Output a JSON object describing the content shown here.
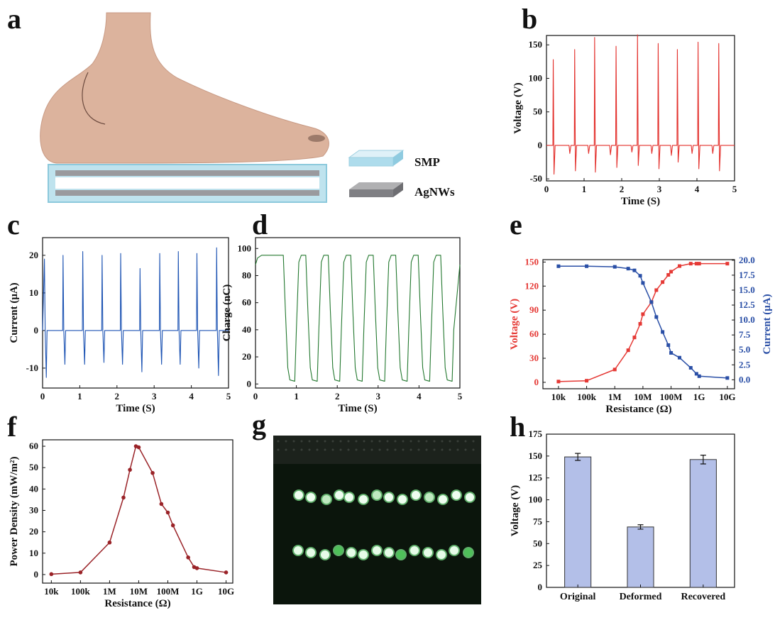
{
  "panel_a": {
    "label": "a",
    "legend": [
      "SMP",
      "AgNWs"
    ]
  },
  "panel_g": {
    "label": "g"
  },
  "chart_data": [
    {
      "type": "line",
      "label": "b",
      "x_label": "Time (S)",
      "y_label": "Voltage (V)",
      "color": "#e3302c",
      "xlim": [
        0,
        5
      ],
      "xticks": [
        0,
        1,
        2,
        3,
        4,
        5
      ],
      "ylim": [
        -53,
        164
      ],
      "yticks": [
        -50,
        0,
        50,
        100,
        150
      ],
      "x": [
        0,
        0.17,
        0.18,
        0.2,
        0.23,
        0.6,
        0.62,
        0.65,
        0.74,
        0.75,
        0.77,
        0.8,
        1.1,
        1.12,
        1.15,
        1.27,
        1.28,
        1.3,
        1.33,
        1.68,
        1.7,
        1.73,
        1.84,
        1.85,
        1.87,
        1.9,
        2.25,
        2.27,
        2.3,
        2.41,
        2.42,
        2.44,
        2.47,
        2.78,
        2.8,
        2.83,
        2.96,
        2.97,
        2.99,
        3.02,
        3.3,
        3.32,
        3.35,
        3.47,
        3.48,
        3.5,
        3.53,
        3.85,
        3.87,
        3.9,
        4.02,
        4.03,
        4.05,
        4.08,
        4.4,
        4.42,
        4.45,
        4.57,
        4.58,
        4.6,
        4.63,
        5
      ],
      "values": [
        0,
        0,
        128,
        -43,
        0,
        0,
        -12,
        0,
        0,
        143,
        -38,
        0,
        0,
        -12,
        0,
        0,
        161,
        -40,
        0,
        0,
        -14,
        0,
        0,
        148,
        -33,
        0,
        0,
        -10,
        0,
        0,
        165,
        -30,
        0,
        0,
        -12,
        0,
        0,
        152,
        -35,
        0,
        0,
        -15,
        0,
        0,
        143,
        -25,
        0,
        0,
        -12,
        0,
        0,
        154,
        -35,
        0,
        0,
        -12,
        0,
        0,
        152,
        -38,
        0,
        0
      ]
    },
    {
      "type": "line",
      "label": "c",
      "x_label": "Time (S)",
      "y_label": "Current (μA)",
      "color": "#1f55b4",
      "xlim": [
        0,
        5
      ],
      "xticks": [
        0,
        1,
        2,
        3,
        4,
        5
      ],
      "ylim": [
        -15.3,
        24.7
      ],
      "yticks": [
        -10,
        0,
        10,
        20
      ],
      "x": [
        0,
        0.05,
        0.07,
        0.1,
        0.12,
        0.54,
        0.55,
        0.57,
        0.6,
        0.62,
        1.07,
        1.08,
        1.1,
        1.13,
        1.15,
        1.59,
        1.6,
        1.62,
        1.65,
        1.67,
        2.09,
        2.1,
        2.12,
        2.15,
        2.17,
        2.61,
        2.62,
        2.64,
        2.67,
        2.69,
        3.14,
        3.15,
        3.17,
        3.2,
        3.22,
        3.64,
        3.65,
        3.67,
        3.7,
        3.72,
        4.14,
        4.15,
        4.17,
        4.2,
        4.22,
        4.67,
        4.68,
        4.7,
        4.73,
        4.75,
        5
      ],
      "values": [
        0,
        19,
        0,
        -12.5,
        0,
        0,
        20,
        0,
        -9,
        0,
        0,
        21,
        0,
        -9,
        0,
        0,
        20,
        0,
        -8.5,
        0,
        0,
        20.5,
        0,
        -9,
        0,
        0,
        16.5,
        0,
        -11,
        0,
        0,
        20.5,
        0,
        -9,
        0,
        0,
        21,
        0,
        -9,
        0,
        0,
        20.5,
        0,
        -10,
        0,
        0,
        22,
        0,
        -12,
        0,
        0
      ]
    },
    {
      "type": "line",
      "label": "d",
      "x_label": "Time (S)",
      "y_label": "Charge (nC)",
      "color": "#23782f",
      "xlim": [
        0,
        5
      ],
      "xticks": [
        0,
        1,
        2,
        3,
        4,
        5
      ],
      "ylim": [
        -3,
        108
      ],
      "yticks": [
        0,
        20,
        40,
        60,
        80,
        100
      ],
      "x": [
        0,
        0.05,
        0.15,
        0.68,
        0.73,
        0.79,
        0.84,
        0.96,
        1.0,
        1.06,
        1.12,
        1.23,
        1.28,
        1.34,
        1.39,
        1.51,
        1.55,
        1.61,
        1.67,
        1.78,
        1.83,
        1.89,
        1.94,
        2.06,
        2.1,
        2.16,
        2.22,
        2.33,
        2.38,
        2.44,
        2.49,
        2.61,
        2.65,
        2.71,
        2.77,
        2.88,
        2.93,
        2.99,
        3.04,
        3.16,
        3.2,
        3.26,
        3.32,
        3.43,
        3.48,
        3.54,
        3.59,
        3.71,
        3.75,
        3.81,
        3.87,
        3.98,
        4.03,
        4.09,
        4.14,
        4.26,
        4.3,
        4.36,
        4.42,
        4.53,
        4.58,
        4.64,
        4.69,
        4.81,
        4.85,
        5
      ],
      "values": [
        88,
        93,
        95,
        95,
        55,
        12,
        3,
        2,
        40,
        90,
        95,
        95,
        55,
        12,
        3,
        2,
        40,
        90,
        95,
        95,
        55,
        12,
        3,
        2,
        40,
        90,
        95,
        95,
        55,
        12,
        3,
        2,
        40,
        90,
        95,
        95,
        55,
        12,
        3,
        2,
        40,
        90,
        95,
        95,
        55,
        12,
        3,
        2,
        40,
        90,
        95,
        95,
        55,
        12,
        3,
        2,
        40,
        90,
        95,
        95,
        55,
        12,
        3,
        2,
        40,
        88
      ]
    },
    {
      "type": "line",
      "label": "e",
      "x_label": "Resistance (Ω)",
      "y_label": "Voltage (V)",
      "y2_label": "Current (μA)",
      "xscale": "log",
      "xlim": [
        2800,
        18000000000
      ],
      "xticks": [
        {
          "value": 10000,
          "label": "10k"
        },
        {
          "value": 100000,
          "label": "100k"
        },
        {
          "value": 1000000,
          "label": "1M"
        },
        {
          "value": 10000000,
          "label": "10M"
        },
        {
          "value": 100000000,
          "label": "100M"
        },
        {
          "value": 1000000000,
          "label": "1G"
        },
        {
          "value": 10000000000,
          "label": "10G"
        }
      ],
      "ylim": [
        -8,
        153
      ],
      "yticks": [
        0,
        30,
        60,
        90,
        120,
        150
      ],
      "y2lim": [
        -1.5,
        20.1
      ],
      "y2ticks": [
        {
          "value": 0,
          "label": "0.0"
        },
        2.5,
        {
          "value": 5,
          "label": "5.0"
        },
        7.5,
        {
          "value": 10,
          "label": "10.0"
        },
        12.5,
        {
          "value": 15,
          "label": "15.0"
        },
        17.5,
        {
          "value": 20,
          "label": "20.0"
        }
      ],
      "markers": "square",
      "x": [
        10000,
        100000,
        1000000,
        3000000,
        5000000,
        8000000,
        10000000,
        20000000,
        30000000,
        50000000,
        80000000,
        100000000,
        200000000,
        500000000,
        800000000,
        1000000000,
        10000000000
      ],
      "series": [
        {
          "color": "#e53935",
          "values": [
            1,
            2,
            16,
            40,
            56,
            73,
            85,
            100,
            115,
            125,
            134,
            138,
            145,
            148,
            148,
            148,
            148
          ]
        },
        {
          "color": "#2a4fa6",
          "axis": "y2",
          "values": [
            19,
            19,
            18.9,
            18.6,
            18.3,
            17.4,
            16.2,
            13,
            10.5,
            8,
            5.8,
            4.5,
            3.7,
            2,
            1,
            0.6,
            0.3
          ]
        }
      ]
    },
    {
      "type": "line",
      "label": "f",
      "x_label": "Resistance (Ω)",
      "y_label": "Power Density (mW/m²)",
      "color": "#9a2328",
      "markers": "circle",
      "xscale": "log",
      "xlim": [
        5000,
        17000000000
      ],
      "xticks": [
        {
          "value": 10000,
          "label": "10k"
        },
        {
          "value": 100000,
          "label": "100k"
        },
        {
          "value": 1000000,
          "label": "1M"
        },
        {
          "value": 10000000,
          "label": "10M"
        },
        {
          "value": 100000000,
          "label": "100M"
        },
        {
          "value": 1000000000,
          "label": "1G"
        },
        {
          "value": 10000000000,
          "label": "10G"
        }
      ],
      "ylim": [
        -4,
        63
      ],
      "yticks": [
        0,
        10,
        20,
        30,
        40,
        50,
        60
      ],
      "x": [
        10000,
        100000,
        1000000,
        3000000,
        5000000,
        8000000,
        10000000,
        30000000,
        60000000,
        100000000,
        150000000,
        500000000,
        800000000,
        1000000000,
        10000000000
      ],
      "values": [
        0.2,
        1,
        15,
        36,
        49,
        60,
        59.5,
        47.5,
        33,
        29,
        23,
        8,
        3.5,
        3,
        1
      ]
    },
    {
      "type": "bar",
      "label": "h",
      "y_label": "Voltage (V)",
      "color": "#b3bfe8",
      "categories": [
        "Original",
        "Deformed",
        "Recovered"
      ],
      "values": [
        149,
        69,
        146
      ],
      "errors": [
        4,
        2.5,
        5
      ],
      "ylim": [
        0,
        175
      ],
      "yticks": [
        0,
        25,
        50,
        75,
        100,
        125,
        150,
        175
      ]
    }
  ]
}
